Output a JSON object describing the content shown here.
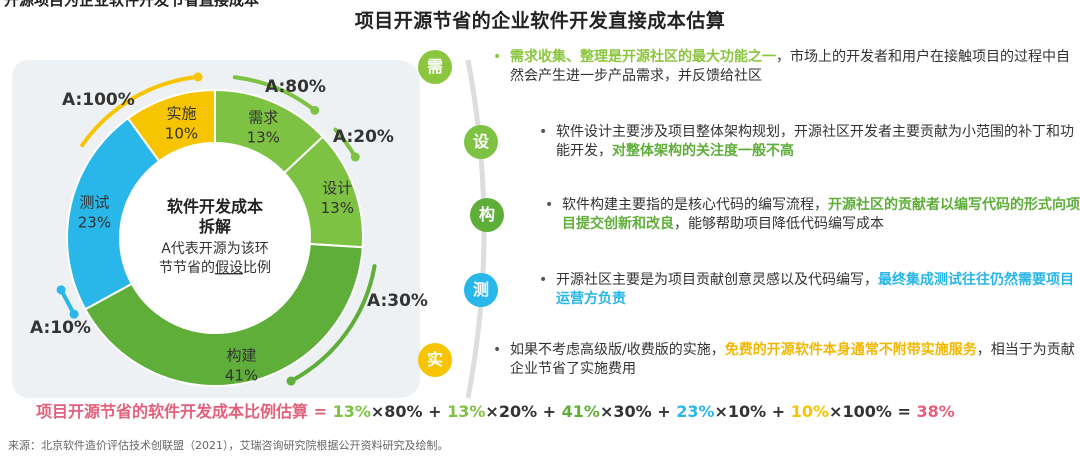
{
  "cutoff_heading": "开源项目为企业软件开发节省直接成本",
  "title": "项目开源节省的企业软件开发直接成本估算",
  "chart_data": {
    "type": "pie",
    "donut": true,
    "center_title": "软件开发成本拆解",
    "center_subtitle_a": "A代表开源为该环",
    "center_subtitle_b": "节节省的",
    "center_subtitle_u": "假设",
    "center_subtitle_c": "比例",
    "segments": [
      {
        "name": "需求",
        "value": 13,
        "label": "13%",
        "saving": "A:80%",
        "color": "#7DC242"
      },
      {
        "name": "设计",
        "value": 13,
        "label": "13%",
        "saving": "A:20%",
        "color": "#7DC242"
      },
      {
        "name": "构建",
        "value": 41,
        "label": "41%",
        "saving": "A:30%",
        "color": "#5FAE3A"
      },
      {
        "name": "测试",
        "value": 23,
        "label": "23%",
        "saving": "A:10%",
        "color": "#29B6E8"
      },
      {
        "name": "实施",
        "value": 10,
        "label": "10%",
        "saving": "A:100%",
        "color": "#F6C400"
      }
    ]
  },
  "stages": [
    {
      "badge": "需",
      "color": "#8CC63F",
      "hl_color": "#8CC63F",
      "pre": "",
      "hl": "需求收集、整理是开源社区的最大功能之一",
      "post": "，市场上的开发者和用户在接触项目的过程中自然会产生进一步产品需求，并反馈给社区"
    },
    {
      "badge": "设",
      "color": "#7DC242",
      "hl_color": "#5FAE3A",
      "pre": "软件设计主要涉及项目整体架构规划，开源社区开发者主要贡献为小范围的补丁和功能开发，",
      "hl": "对整体架构的关注度一般不高",
      "post": ""
    },
    {
      "badge": "构",
      "color": "#5FAE3A",
      "hl_color": "#5FAE3A",
      "pre": "软件构建主要指的是核心代码的编写流程，",
      "hl": "开源社区的贡献者以编写代码的形式向项目提交创新和改良",
      "post": "，能够帮助项目降低代码编写成本"
    },
    {
      "badge": "测",
      "color": "#29B6E8",
      "hl_color": "#29B6E8",
      "pre": "开源社区主要是为项目贡献创意灵感以及代码编写，",
      "hl": "最终集成测试往往仍然需要项目运营方负责",
      "post": ""
    },
    {
      "badge": "实",
      "color": "#F6C400",
      "hl_color": "#F2B800",
      "pre": "如果不考虑高级版/收费版的实施，",
      "hl": "免费的开源软件本身通常不附带实施服务",
      "post": "，相当于为贡献企业节省了实施费用"
    }
  ],
  "formula": {
    "label": "项目开源节省的软件开发成本比例估算 = ",
    "terms": [
      {
        "pct": "13%",
        "mult": "×80%",
        "color": "#7DC242"
      },
      {
        "pct": "13%",
        "mult": "×20%",
        "color": "#7DC242"
      },
      {
        "pct": "41%",
        "mult": "×30%",
        "color": "#5FAE3A"
      },
      {
        "pct": "23%",
        "mult": "×10%",
        "color": "#29B6E8"
      },
      {
        "pct": "10%",
        "mult": "×100%",
        "color": "#F6C400"
      }
    ],
    "result": "38%",
    "label_color": "#E4607A"
  },
  "source": "来源：北京软件造价评估技术创联盟（2021），艾瑞咨询研究院根据公开资料研究及绘制。"
}
